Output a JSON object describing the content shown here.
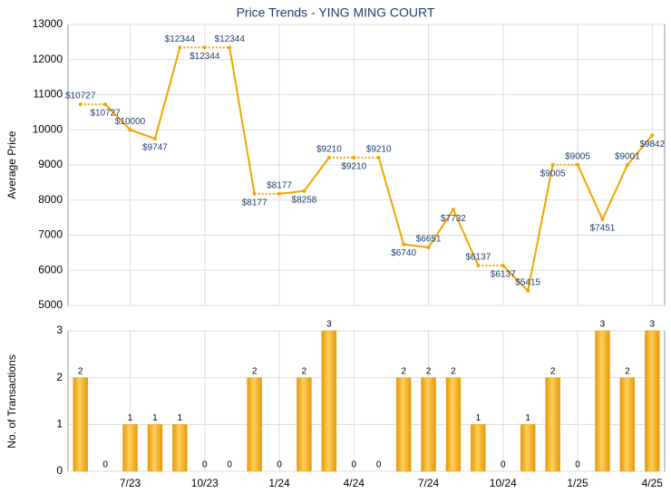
{
  "chart_data": [
    {
      "type": "line",
      "title": "Price Trends - YING MING COURT",
      "y_label": "Average Price",
      "values": [
        10727,
        10727,
        10000,
        9747,
        12344,
        12344,
        12344,
        8177,
        8177,
        8258,
        9210,
        9210,
        9210,
        6740,
        6651,
        7732,
        6137,
        6137,
        5415,
        9005,
        9005,
        7451,
        9001,
        9842
      ],
      "value_labels": [
        "$10727",
        "$10727",
        "$10000",
        "$9747",
        "$12344",
        "$12344",
        "$12344",
        "$8177",
        "$8177",
        "$8258",
        "$9210",
        "$9210",
        "$9210",
        "$6740",
        "$6651",
        "$7732",
        "$6137",
        "$6137",
        "$5415",
        "$9005",
        "$9005",
        "$7451",
        "$9001",
        "$9842"
      ],
      "color": "#f5a300",
      "ylim": [
        5000,
        13000
      ],
      "yticks": [
        5000,
        6000,
        7000,
        8000,
        9000,
        10000,
        11000,
        12000,
        13000
      ],
      "grid": true
    },
    {
      "type": "bar",
      "y_label": "No. of Transactions",
      "categories": [
        null,
        null,
        "7/23",
        null,
        null,
        "10/23",
        null,
        null,
        "1/24",
        null,
        null,
        "4/24",
        null,
        null,
        "7/24",
        null,
        null,
        "10/24",
        null,
        null,
        "1/25",
        null,
        null,
        "4/25"
      ],
      "values": [
        2,
        0,
        1,
        1,
        1,
        0,
        0,
        2,
        0,
        2,
        3,
        0,
        0,
        2,
        2,
        2,
        1,
        0,
        1,
        2,
        0,
        3,
        2,
        3
      ],
      "color": "#f0a818",
      "ylim": [
        0,
        3
      ],
      "yticks": [
        0,
        1,
        2,
        3
      ],
      "grid": true
    }
  ]
}
